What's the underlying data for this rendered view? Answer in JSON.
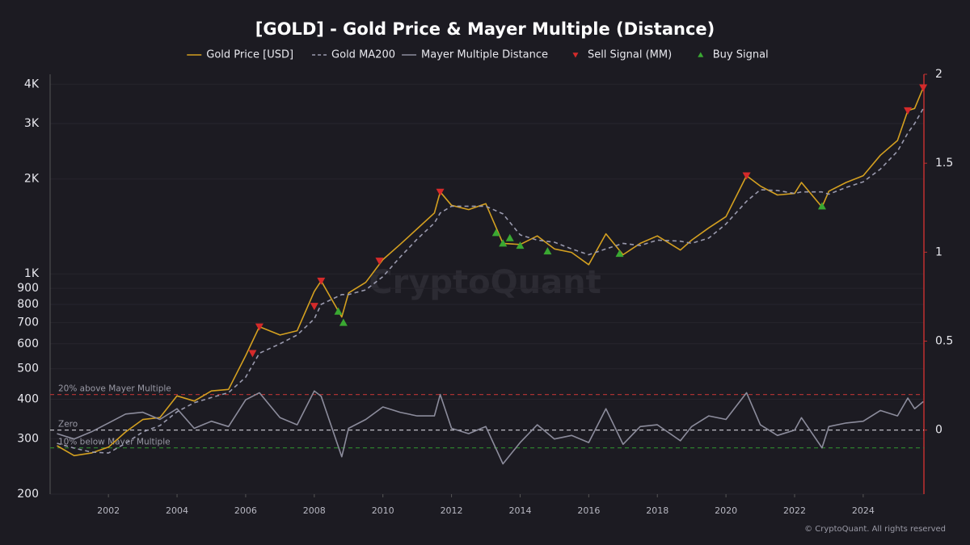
{
  "chart_data": {
    "type": "line",
    "title": "[GOLD] - Gold Price & Mayer Multiple (Distance)",
    "watermark": "CryptoQuant",
    "footer": "© CryptoQuant. All rights reserved",
    "log_y": true,
    "grid": true,
    "legend_position": "top",
    "xlim": [
      2000.3,
      2025.77
    ],
    "xticks": [
      2002,
      2004,
      2006,
      2008,
      2010,
      2012,
      2014,
      2016,
      2018,
      2020,
      2022,
      2024
    ],
    "ylim": [
      200,
      4300
    ],
    "yticks": [
      200,
      300,
      400,
      500,
      600,
      700,
      800,
      900,
      {
        "value": 1000,
        "label": "1K"
      },
      {
        "value": 2000,
        "label": "2K"
      },
      {
        "value": 3000,
        "label": "3K"
      },
      {
        "value": 4000,
        "label": "4K"
      }
    ],
    "y2lim": [
      -0.36,
      2
    ],
    "y2ticks": [
      0,
      0.5,
      1,
      1.5,
      2
    ],
    "x": [
      2000.5,
      2001,
      2001.5,
      2002,
      2002.5,
      2003,
      2003.5,
      2004,
      2004.5,
      2005,
      2005.5,
      2006,
      2006.4,
      2007,
      2007.5,
      2008,
      2008.2,
      2008.8,
      2009,
      2009.5,
      2010,
      2010.5,
      2011,
      2011.5,
      2011.67,
      2012,
      2012.5,
      2013,
      2013.5,
      2014,
      2014.5,
      2015,
      2015.5,
      2016,
      2016.5,
      2017,
      2017.5,
      2018,
      2018.67,
      2019,
      2019.5,
      2020,
      2020.6,
      2021,
      2021.5,
      2022,
      2022.2,
      2022.8,
      2023,
      2023.5,
      2024,
      2024.5,
      2025,
      2025.3,
      2025.5,
      2025.75
    ],
    "series": [
      {
        "name": "Gold Price [USD]",
        "type": "line",
        "color": "#d4a020",
        "values": [
          285,
          265,
          270,
          282,
          315,
          345,
          350,
          410,
          395,
          425,
          430,
          550,
          680,
          640,
          660,
          880,
          950,
          730,
          870,
          940,
          1110,
          1240,
          1390,
          1560,
          1820,
          1650,
          1600,
          1670,
          1250,
          1240,
          1320,
          1200,
          1170,
          1070,
          1340,
          1150,
          1250,
          1320,
          1190,
          1280,
          1400,
          1520,
          2050,
          1900,
          1780,
          1800,
          1950,
          1630,
          1830,
          1950,
          2050,
          2380,
          2650,
          3300,
          3350,
          3900
        ]
      },
      {
        "name": "Gold MA200",
        "type": "line",
        "dash": true,
        "color": "#9a9aae",
        "values": [
          290,
          280,
          272,
          270,
          290,
          315,
          330,
          365,
          390,
          405,
          420,
          470,
          560,
          600,
          640,
          720,
          800,
          860,
          860,
          890,
          980,
          1130,
          1290,
          1450,
          1560,
          1640,
          1640,
          1640,
          1550,
          1330,
          1280,
          1260,
          1200,
          1150,
          1200,
          1250,
          1230,
          1280,
          1270,
          1250,
          1300,
          1440,
          1700,
          1850,
          1840,
          1800,
          1820,
          1820,
          1790,
          1880,
          1960,
          2150,
          2450,
          2800,
          3000,
          3350
        ]
      },
      {
        "name": "Mayer Multiple Distance",
        "type": "line",
        "axis": "y2",
        "color": "#8c8c9c",
        "values": [
          -0.02,
          -0.05,
          -0.01,
          0.04,
          0.09,
          0.1,
          0.06,
          0.12,
          0.01,
          0.05,
          0.02,
          0.17,
          0.21,
          0.07,
          0.03,
          0.22,
          0.19,
          -0.15,
          0.01,
          0.06,
          0.13,
          0.1,
          0.08,
          0.08,
          0.2,
          0.01,
          -0.02,
          0.02,
          -0.19,
          -0.07,
          0.03,
          -0.05,
          -0.03,
          -0.07,
          0.12,
          -0.08,
          0.02,
          0.03,
          -0.06,
          0.02,
          0.08,
          0.06,
          0.21,
          0.03,
          -0.03,
          0,
          0.07,
          -0.1,
          0.02,
          0.04,
          0.05,
          0.11,
          0.08,
          0.18,
          0.12,
          0.16
        ]
      },
      {
        "name": "Sell Signal (MM)",
        "type": "scatter",
        "marker": "down",
        "color": "#d42a2a",
        "x": [
          2006.2,
          2006.4,
          2008.0,
          2008.2,
          2009.9,
          2011.67,
          2020.6,
          2025.3,
          2025.75
        ],
        "values": [
          560,
          680,
          790,
          950,
          1100,
          1820,
          2050,
          3300,
          3900
        ]
      },
      {
        "name": "Buy Signal",
        "type": "scatter",
        "marker": "up",
        "color": "#3aa832",
        "x": [
          2008.7,
          2008.85,
          2013.3,
          2013.5,
          2013.7,
          2014.0,
          2014.8,
          2016.9,
          2022.8
        ],
        "values": [
          760,
          700,
          1350,
          1250,
          1300,
          1230,
          1180,
          1160,
          1640
        ]
      }
    ],
    "reference_lines": [
      {
        "value": 0.2,
        "label": "20% above Mayer Multiple",
        "color": "#a83232"
      },
      {
        "value": 0,
        "label": "Zero",
        "color": "#d0d0d8"
      },
      {
        "value": -0.1,
        "label": "10% below Mayer Multiple",
        "color": "#2f8a2f"
      }
    ]
  }
}
